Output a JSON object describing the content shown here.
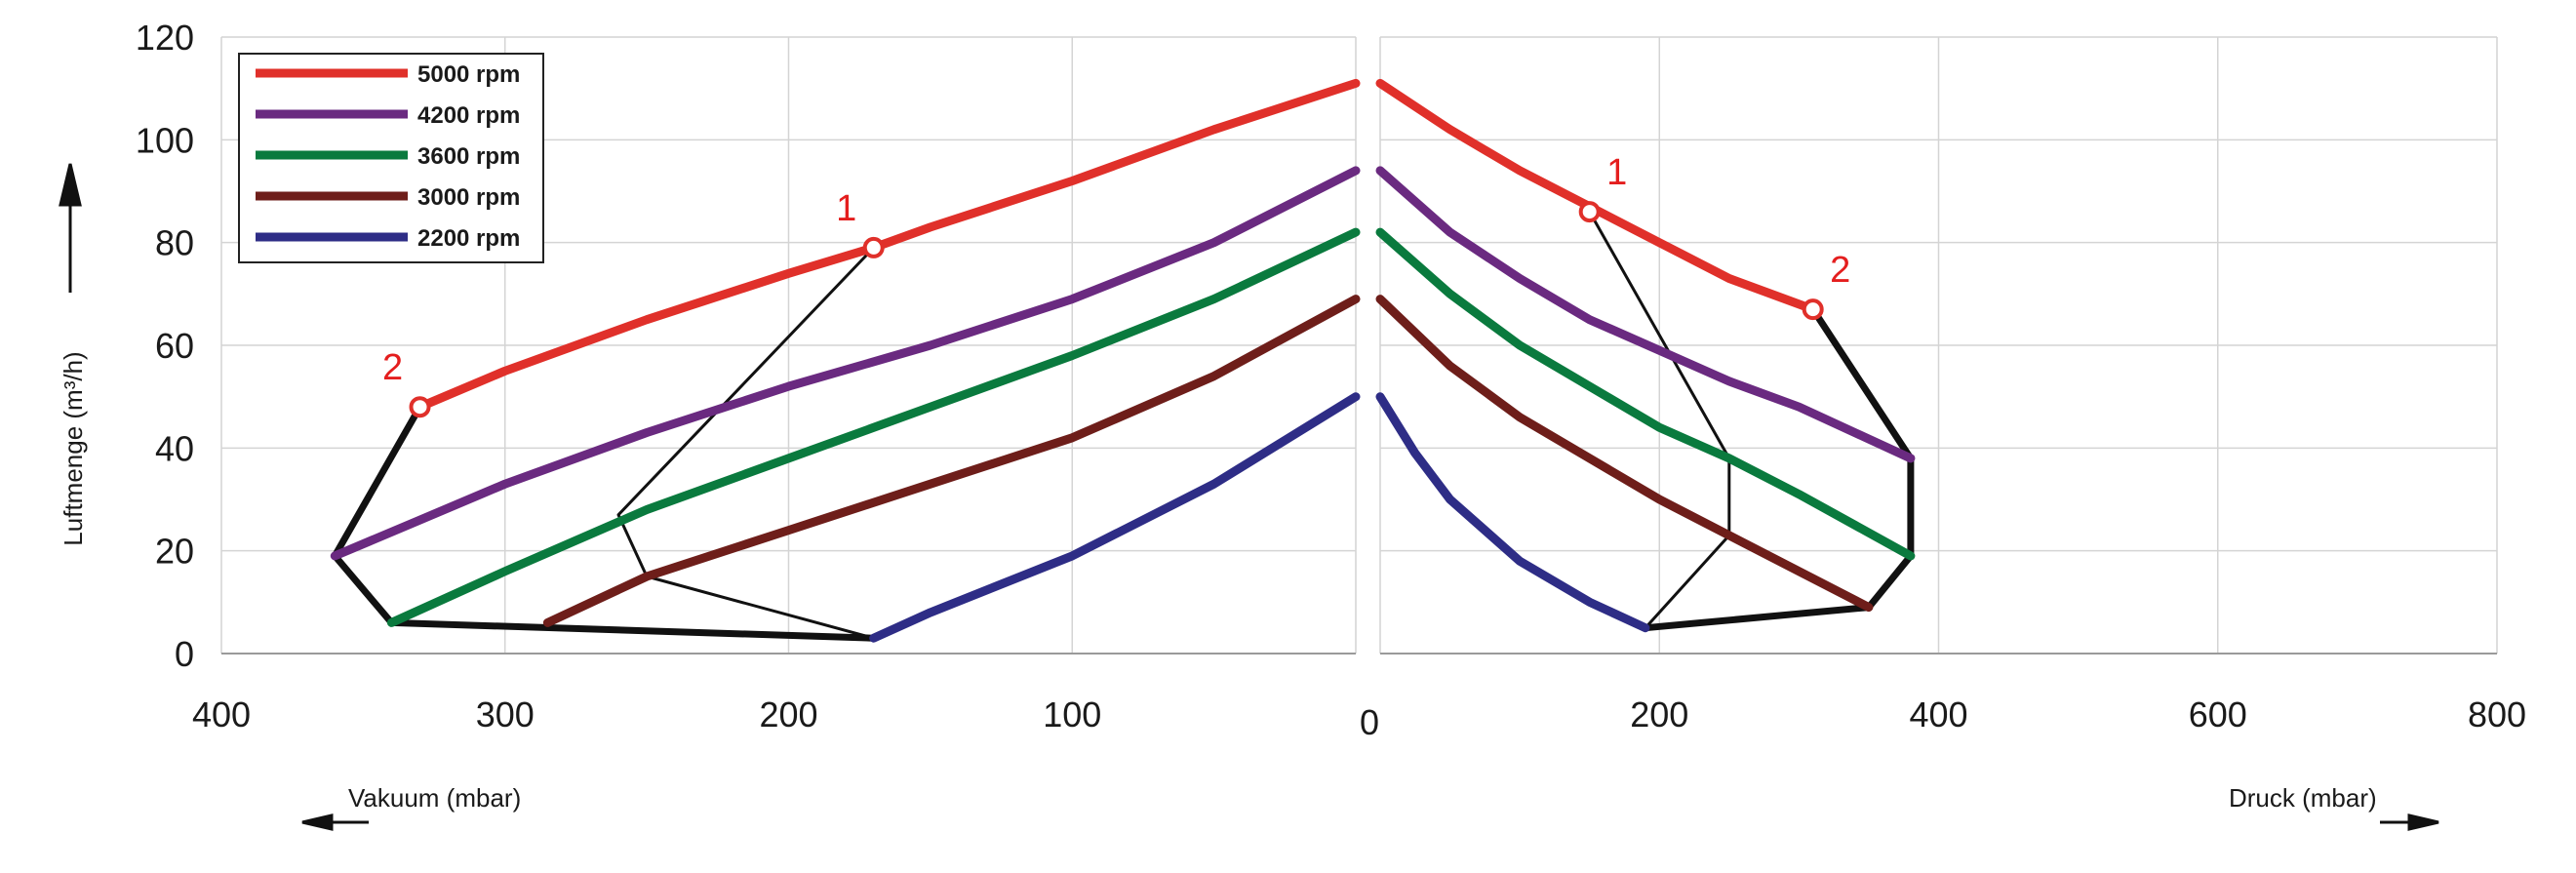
{
  "chart_data": {
    "type": "line",
    "ylabel": "Luftmenge (m³/h)",
    "ylim": [
      0,
      120
    ],
    "yticks": [
      "0",
      "20",
      "40",
      "60",
      "80",
      "100",
      "120"
    ],
    "grid": true,
    "legend_position": "top-left",
    "left_panel": {
      "xlabel": "Vakuum (mbar)",
      "xlim": [
        400,
        0
      ],
      "xticks": [
        "400",
        "300",
        "200",
        "100"
      ]
    },
    "right_panel": {
      "xlabel": "Druck (mbar)",
      "xlim": [
        0,
        800
      ],
      "xticks": [
        "200",
        "400",
        "600",
        "800"
      ]
    },
    "zero_label": "0",
    "series": [
      {
        "name": "5000 rpm",
        "color": "#e0302a",
        "vacuum_x": [
          330,
          300,
          250,
          200,
          170,
          150,
          100,
          50,
          0
        ],
        "vacuum_y": [
          48,
          55,
          65,
          74,
          79,
          83,
          92,
          102,
          111
        ],
        "pressure_x": [
          0,
          50,
          100,
          150,
          200,
          250,
          310
        ],
        "pressure_y": [
          111,
          102,
          94,
          87,
          80,
          73,
          67
        ]
      },
      {
        "name": "4200 rpm",
        "color": "#6a2a80",
        "vacuum_x": [
          360,
          330,
          300,
          250,
          200,
          150,
          100,
          50,
          0
        ],
        "vacuum_y": [
          19,
          26,
          33,
          43,
          52,
          60,
          69,
          80,
          94
        ],
        "pressure_x": [
          0,
          50,
          100,
          150,
          200,
          250,
          300,
          380
        ],
        "pressure_y": [
          94,
          82,
          73,
          65,
          59,
          53,
          48,
          38
        ]
      },
      {
        "name": "3600 rpm",
        "color": "#0a7a3e",
        "vacuum_x": [
          340,
          300,
          250,
          200,
          150,
          100,
          50,
          0
        ],
        "vacuum_y": [
          6,
          16,
          28,
          38,
          48,
          58,
          69,
          82
        ],
        "pressure_x": [
          0,
          50,
          100,
          150,
          200,
          250,
          300,
          380
        ],
        "pressure_y": [
          82,
          70,
          60,
          52,
          44,
          38,
          31,
          19
        ]
      },
      {
        "name": "3000 rpm",
        "color": "#6e1e1a",
        "vacuum_x": [
          285,
          250,
          200,
          150,
          100,
          50,
          0
        ],
        "vacuum_y": [
          6,
          15,
          24,
          33,
          42,
          54,
          69
        ],
        "pressure_x": [
          0,
          50,
          100,
          150,
          200,
          250,
          300,
          350
        ],
        "pressure_y": [
          69,
          56,
          46,
          38,
          30,
          23,
          16,
          9
        ]
      },
      {
        "name": "2200 rpm",
        "color": "#2e2d86",
        "vacuum_x": [
          170,
          150,
          100,
          50,
          0
        ],
        "vacuum_y": [
          3,
          8,
          19,
          33,
          50
        ],
        "pressure_x": [
          0,
          25,
          50,
          100,
          150,
          190
        ],
        "pressure_y": [
          50,
          39,
          30,
          18,
          10,
          5
        ]
      }
    ],
    "boundary_lines": {
      "vacuum_thick": {
        "x": [
          330,
          360,
          340,
          170
        ],
        "y": [
          48,
          19,
          6,
          3
        ]
      },
      "vacuum_thin": {
        "x": [
          170,
          260,
          250,
          170
        ],
        "y": [
          79,
          27,
          15,
          3
        ]
      },
      "pressure_thick": {
        "x": [
          310,
          380,
          380,
          350,
          190
        ],
        "y": [
          67,
          38,
          19,
          9,
          5
        ]
      },
      "pressure_thin": {
        "x": [
          150,
          250,
          250,
          190
        ],
        "y": [
          86,
          38,
          23,
          5
        ]
      }
    },
    "markers": [
      {
        "label": "1",
        "panel": "vacuum",
        "x": 170,
        "y": 79
      },
      {
        "label": "2",
        "panel": "vacuum",
        "x": 330,
        "y": 48
      },
      {
        "label": "1",
        "panel": "pressure",
        "x": 150,
        "y": 86
      },
      {
        "label": "2",
        "panel": "pressure",
        "x": 310,
        "y": 67
      }
    ]
  }
}
